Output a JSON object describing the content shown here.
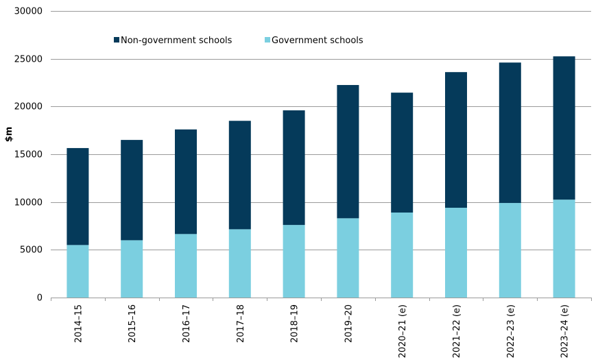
{
  "chart_data": {
    "type": "bar",
    "stacked": true,
    "title": "",
    "xlabel": "",
    "ylabel": "$m",
    "ylim": [
      0,
      30000
    ],
    "yticks": [
      0,
      5000,
      10000,
      15000,
      20000,
      25000,
      30000
    ],
    "grid": true,
    "legend_position": "top-left",
    "categories": [
      "2014–15",
      "2015–16",
      "2016–17",
      "2017–18",
      "2018–19",
      "2019–20",
      "2020–21 (e)",
      "2021–22 (e)",
      "2022–23 (e)",
      "2023–24 (e)"
    ],
    "series": [
      {
        "name": "Government schools",
        "color": "#7bcfe0",
        "values": [
          5500,
          6000,
          6650,
          7150,
          7600,
          8300,
          8900,
          9400,
          9900,
          10250
        ]
      },
      {
        "name": "Non-government schools",
        "color": "#053a5a",
        "values": [
          10150,
          10500,
          10950,
          11350,
          12000,
          13950,
          12550,
          14200,
          14700,
          15000
        ]
      }
    ],
    "legend_order": [
      "Non-government schools",
      "Government schools"
    ]
  }
}
